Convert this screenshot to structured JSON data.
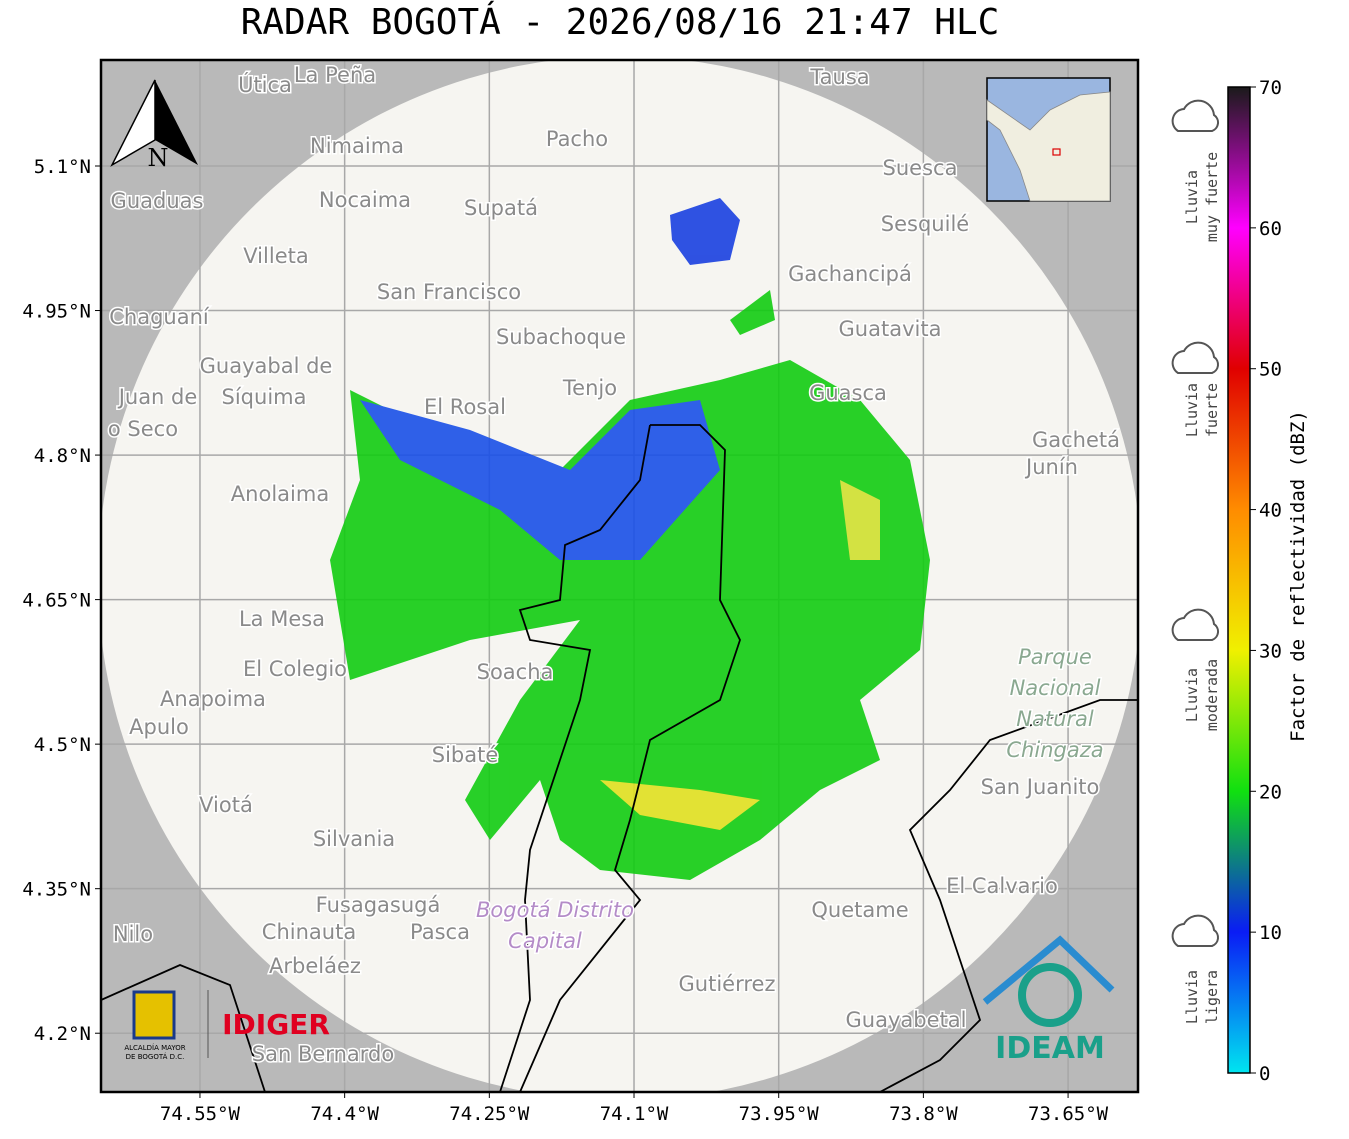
{
  "title": "RADAR BOGOTÁ - 2026/08/16 21:47 HLC",
  "map": {
    "xlim": [
      -74.6526,
      -73.5775
    ],
    "ylim": [
      4.139,
      5.21
    ],
    "grid": true,
    "xticks": [
      {
        "value": -74.55,
        "label": "74.55°W"
      },
      {
        "value": -74.4,
        "label": "74.4°W"
      },
      {
        "value": -74.25,
        "label": "74.25°W"
      },
      {
        "value": -74.1,
        "label": "74.1°W"
      },
      {
        "value": -73.95,
        "label": "73.95°W"
      },
      {
        "value": -73.8,
        "label": "73.8°W"
      },
      {
        "value": -73.65,
        "label": "73.65°W"
      }
    ],
    "yticks": [
      {
        "value": 5.1,
        "label": "5.1°N"
      },
      {
        "value": 4.95,
        "label": "4.95°N"
      },
      {
        "value": 4.8,
        "label": "4.8°N"
      },
      {
        "value": 4.65,
        "label": "4.65°N"
      },
      {
        "value": 4.5,
        "label": "4.5°N"
      },
      {
        "value": 4.35,
        "label": "4.35°N"
      },
      {
        "value": 4.2,
        "label": "4.2°N"
      }
    ],
    "north_label": "N",
    "places": [
      "Útica",
      "La Peña",
      "Tausa",
      "Nimaima",
      "Pacho",
      "Guaduas",
      "Nocaima",
      "Supatá",
      "Suesca",
      "Sesquilé",
      "Villeta",
      "Gachancipá",
      "San Francisco",
      "Chaguaní",
      "Subachoque",
      "Guatavita",
      "Guayabal de",
      "Síquima",
      "Juan de",
      "Tenjo",
      "El Rosal",
      "Guasca",
      "o Seco",
      "Gachetá",
      "Junín",
      "Anolaima",
      "La Mesa",
      "Parque",
      "Nacional",
      "Natural",
      "Chingaza",
      "El Colegio",
      "Soacha",
      "Anapoima",
      "Apulo",
      "San Juanito",
      "Sibaté",
      "Viotá",
      "Silvania",
      "El Calvario",
      "Fusagasugá",
      "Bogotá Distrito",
      "Capital",
      "Quetame",
      "Nilo",
      "Chinauta",
      "Pasca",
      "Arbeláez",
      "Gutiérrez",
      "Guayabetal",
      "San Bernardo"
    ]
  },
  "colorbar": {
    "label": "Factor de reflectividad (dBZ)",
    "ylim": [
      0,
      70
    ],
    "ticks": [
      0,
      10,
      20,
      30,
      40,
      50,
      60,
      70
    ],
    "colors": [
      "#00e5f0",
      "#0a1cf5",
      "#10e010",
      "#f0f000",
      "#ff8c00",
      "#e00000",
      "#ff00ff",
      "#1a1a1a"
    ]
  },
  "rain_classes": [
    [
      "Lluvia",
      "muy fuerte"
    ],
    [
      "Lluvia",
      "fuerte"
    ],
    [
      "Lluvia",
      "moderada"
    ],
    [
      "Lluvia",
      "ligera"
    ]
  ],
  "logos": {
    "alcaldia": [
      "ALCALDÍA MAYOR",
      "DE BOGOTÁ D.C."
    ],
    "idiger": "IDIGER",
    "ideam": "IDEAM"
  }
}
